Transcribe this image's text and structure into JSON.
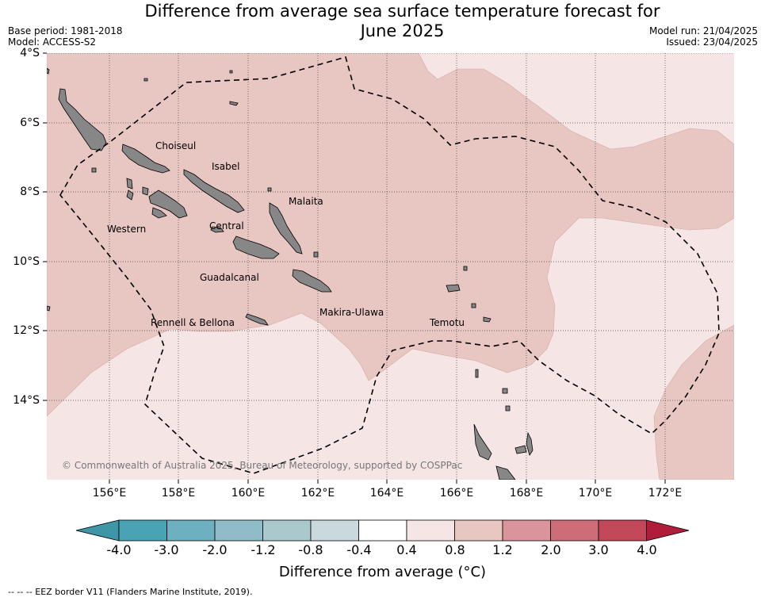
{
  "title": {
    "line1": "Difference from average sea surface temperature forecast for",
    "line2": "June 2025"
  },
  "meta": {
    "base_period": "Base period: 1981-2018",
    "model": "Model: ACCESS-S2",
    "model_run": "Model run: 21/04/2025",
    "issued": "Issued: 23/04/2025"
  },
  "axes": {
    "lat_labels": [
      "4°S",
      "6°S",
      "8°S",
      "10°S",
      "12°S",
      "14°S"
    ],
    "lon_labels": [
      "156°E",
      "158°E",
      "160°E",
      "162°E",
      "164°E",
      "166°E",
      "168°E",
      "170°E",
      "172°E"
    ]
  },
  "regions": [
    "Choiseul",
    "Isabel",
    "Malaita",
    "Western",
    "Central",
    "Guadalcanal",
    "Makira-Ulawa",
    "Rennell & Bellona",
    "Temotu"
  ],
  "copyright": "© Commonwealth of Australia 2025, Bureau of Meteorology, supported by COSPPac",
  "colorbar": {
    "colors": [
      "#3f96a6",
      "#4aa3b4",
      "#6db0bf",
      "#8fbcc6",
      "#aac9cd",
      "#c9d9dc",
      "#ffffff",
      "#f5e6e5",
      "#e8c6c2",
      "#d9959b",
      "#cc6d78",
      "#c1495a",
      "#b01d3b"
    ],
    "tick_labels": [
      "-4.0",
      "-3.0",
      "-2.0",
      "-1.2",
      "-0.8",
      "-0.4",
      "0.4",
      "0.8",
      "1.2",
      "2.0",
      "3.0",
      "4.0"
    ],
    "label": "Difference from average (°C)"
  },
  "colors": {
    "band_0_4_0_8": "#f5e6e5",
    "band_0_8_1_2": "#e8c6c2",
    "land": "#878787"
  },
  "footnote": "--  --  -- EEZ border V11 (Flanders Marine Institute, 2019)."
}
